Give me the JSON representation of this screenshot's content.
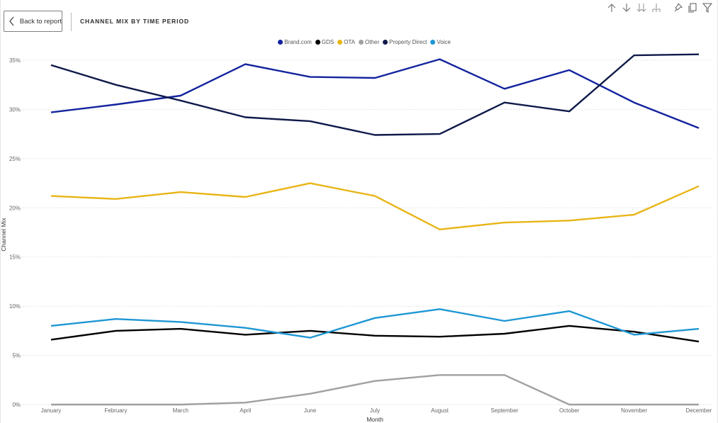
{
  "header": {
    "back_label": "Back to report",
    "title": "CHANNEL MIX BY TIME PERIOD"
  },
  "toolbar": {
    "icons": [
      "arrow-up-icon",
      "arrow-down-icon",
      "double-arrow-down-icon",
      "expand-hierarchy-icon",
      "pin-icon",
      "copy-icon",
      "filter-icon"
    ]
  },
  "chart_data": {
    "type": "line",
    "title": "CHANNEL MIX BY TIME PERIOD",
    "xlabel": "Month",
    "ylabel": "Channel Mix",
    "ylim": [
      0,
      0.35
    ],
    "yticks": [
      "0%",
      "5%",
      "10%",
      "15%",
      "20%",
      "25%",
      "30%",
      "35%"
    ],
    "grid": true,
    "legend_position": "top-center",
    "categories": [
      "January",
      "February",
      "March",
      "April",
      "June",
      "July",
      "August",
      "September",
      "October",
      "November",
      "December"
    ],
    "series": [
      {
        "name": "Brand.com",
        "color": "#12239e",
        "values": [
          0.297,
          0.305,
          0.314,
          0.346,
          0.333,
          0.332,
          0.351,
          0.321,
          0.34,
          0.307,
          0.281
        ]
      },
      {
        "name": "GDS",
        "color": "#000000",
        "values": [
          0.066,
          0.075,
          0.077,
          0.071,
          0.075,
          0.07,
          0.069,
          0.072,
          0.08,
          0.074,
          0.064
        ]
      },
      {
        "name": "OTA",
        "color": "#e8b517",
        "values": [
          0.212,
          0.209,
          0.216,
          0.211,
          0.225,
          0.212,
          0.178,
          0.185,
          0.187,
          0.193,
          0.222
        ]
      },
      {
        "name": "Other",
        "color": "#a0a0a0",
        "values": [
          0.0,
          0.0,
          0.0,
          0.002,
          0.011,
          0.024,
          0.03,
          0.03,
          0.0,
          0.0,
          0.0
        ]
      },
      {
        "name": "Property Direct",
        "color": "#0f1a4a",
        "values": [
          0.345,
          0.325,
          0.309,
          0.292,
          0.288,
          0.274,
          0.275,
          0.307,
          0.298,
          0.355,
          0.356
        ]
      },
      {
        "name": "Voice",
        "color": "#1f97d4",
        "values": [
          0.08,
          0.087,
          0.084,
          0.078,
          0.068,
          0.088,
          0.097,
          0.085,
          0.095,
          0.071,
          0.077
        ]
      }
    ]
  }
}
